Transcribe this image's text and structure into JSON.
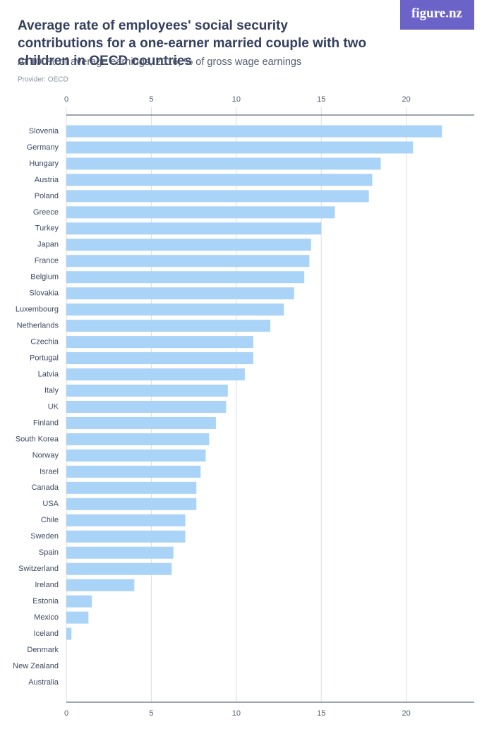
{
  "logo": "figure.nz",
  "chart_data": {
    "type": "bar",
    "orientation": "horizontal",
    "title": "Average rate of employees' social security contributions for a one-earner married couple with two children in OECD countries",
    "subtitle": "At 100% of average earnings, 2016, % of gross wage earnings",
    "source": "Provider: OECD",
    "categories": [
      "Slovenia",
      "Germany",
      "Hungary",
      "Austria",
      "Poland",
      "Greece",
      "Turkey",
      "Japan",
      "France",
      "Belgium",
      "Slovakia",
      "Luxembourg",
      "Netherlands",
      "Czechia",
      "Portugal",
      "Latvia",
      "Italy",
      "UK",
      "Finland",
      "South Korea",
      "Norway",
      "Israel",
      "Canada",
      "USA",
      "Chile",
      "Sweden",
      "Spain",
      "Switzerland",
      "Ireland",
      "Estonia",
      "Mexico",
      "Iceland",
      "Denmark",
      "New Zealand",
      "Australia"
    ],
    "values": [
      22.1,
      20.4,
      18.5,
      18.0,
      17.8,
      15.8,
      15.0,
      14.4,
      14.3,
      14.0,
      13.4,
      12.8,
      12.0,
      11.0,
      11.0,
      10.5,
      9.5,
      9.4,
      8.8,
      8.4,
      8.2,
      7.9,
      7.65,
      7.65,
      7.0,
      7.0,
      6.3,
      6.2,
      4.0,
      1.5,
      1.3,
      0.3,
      0,
      0,
      0
    ],
    "color": "#a9d3f7",
    "xlim": [
      0,
      24
    ],
    "xticks": [
      0,
      5,
      10,
      15,
      20
    ],
    "grid": true
  }
}
